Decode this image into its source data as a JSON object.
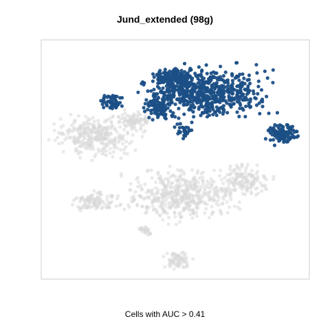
{
  "chart_data": {
    "type": "scatter",
    "title": "Jund_extended (98g)",
    "xlabel": "Cells with AUC > 0.41",
    "ylabel": "",
    "grid": false,
    "legend": "none",
    "colors": {
      "above_threshold": "#1b4f86",
      "below_threshold": "#d9d9d9",
      "frame": "#cccccc"
    },
    "xlim": [
      0,
      100
    ],
    "ylim": [
      0,
      100
    ],
    "series": [
      {
        "role": "above_threshold",
        "clusters": [
          {
            "cx": 61,
            "cy": 78,
            "rx": 28,
            "ry": 13,
            "n": 620
          },
          {
            "cx": 50,
            "cy": 84,
            "rx": 9,
            "ry": 6,
            "n": 140
          },
          {
            "cx": 44,
            "cy": 72,
            "rx": 6,
            "ry": 6,
            "n": 90
          },
          {
            "cx": 26,
            "cy": 74,
            "rx": 5,
            "ry": 4,
            "n": 55
          },
          {
            "cx": 53,
            "cy": 62,
            "rx": 4,
            "ry": 4,
            "n": 30
          },
          {
            "cx": 90,
            "cy": 61,
            "rx": 7,
            "ry": 5,
            "n": 120
          }
        ]
      },
      {
        "role": "below_threshold",
        "clusters": [
          {
            "cx": 20,
            "cy": 60,
            "rx": 18,
            "ry": 10,
            "n": 320
          },
          {
            "cx": 35,
            "cy": 66,
            "rx": 7,
            "ry": 5,
            "n": 80
          },
          {
            "cx": 52,
            "cy": 35,
            "rx": 24,
            "ry": 13,
            "n": 480
          },
          {
            "cx": 76,
            "cy": 41,
            "rx": 12,
            "ry": 8,
            "n": 150
          },
          {
            "cx": 20,
            "cy": 33,
            "rx": 10,
            "ry": 5,
            "n": 110
          },
          {
            "cx": 51,
            "cy": 8,
            "rx": 6,
            "ry": 5,
            "n": 70
          },
          {
            "cx": 39,
            "cy": 20,
            "rx": 4,
            "ry": 3,
            "n": 25
          }
        ]
      }
    ]
  }
}
